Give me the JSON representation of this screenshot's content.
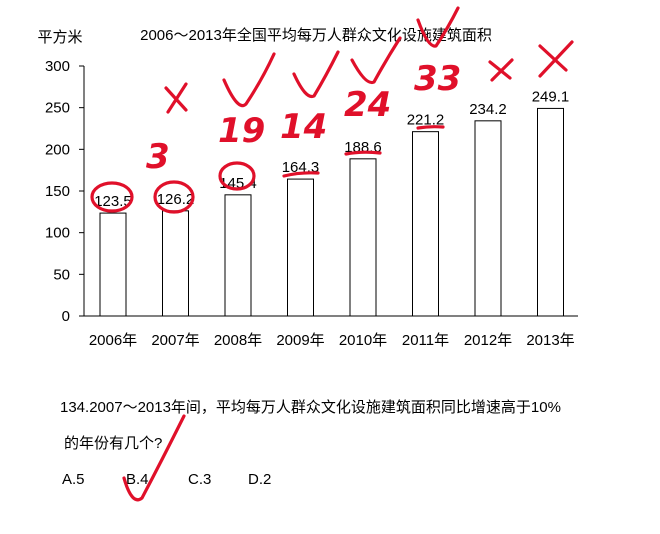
{
  "chart_data": {
    "type": "bar",
    "title": "2006～2013年全国平均每万人群众文化设施建筑面积",
    "ylabel": "平方米",
    "xlabel": "",
    "categories": [
      "2006年",
      "2007年",
      "2008年",
      "2009年",
      "2010年",
      "2011年",
      "2012年",
      "2013年"
    ],
    "values": [
      123.5,
      126.2,
      145.4,
      164.3,
      188.6,
      221.2,
      234.2,
      249.1
    ],
    "value_labels": [
      "123.5",
      "126.2",
      "145.4",
      "164.3",
      "188.6",
      "221.2",
      "234.2",
      "249.1"
    ],
    "ylim": [
      0,
      300
    ],
    "yticks": [
      "0",
      "50",
      "100",
      "150",
      "200",
      "250",
      "300"
    ],
    "grid": false,
    "bar_fill": "#ffffff",
    "bar_stroke": "#000000"
  },
  "question": {
    "stem_line1": "134.2007～2013年间，平均每万人群众文化设施建筑面积同比增速高于10%",
    "stem_line2": "的年份有几个?",
    "options": [
      "A.5",
      "B.4",
      "C.3",
      "D.2"
    ]
  },
  "annotations": {
    "ink_color": "#e0102a",
    "notes": [
      "3",
      "19",
      "14",
      "24",
      "33"
    ]
  }
}
